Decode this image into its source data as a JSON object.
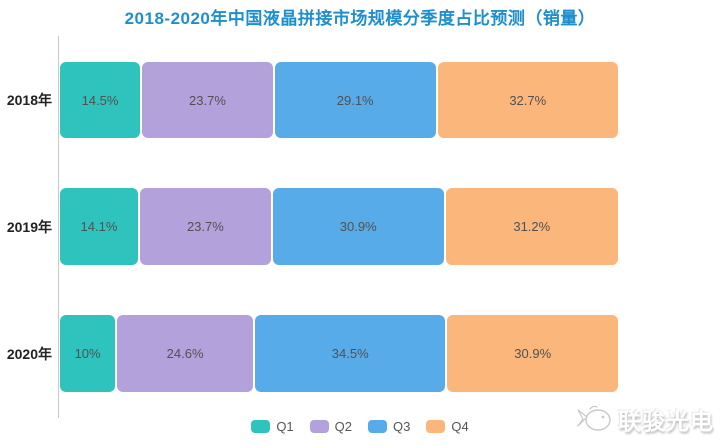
{
  "title": "2018-2020年中国液晶拼接市场规模分季度占比预测（销量）",
  "colors": {
    "title": "#1e8fcc",
    "axis": "#c9c9c9",
    "bar_label": "#515151",
    "category_label": "#222222",
    "legend_label": "#555555"
  },
  "chart_data": {
    "type": "bar",
    "orientation": "horizontal_stacked",
    "stack_unit": "%",
    "title": "2018-2020年中国液晶拼接市场规模分季度占比预测（销量）",
    "categories": [
      "2018年",
      "2019年",
      "2020年"
    ],
    "series": [
      {
        "name": "Q1",
        "color": "#2fc3bd",
        "values": [
          14.5,
          14.1,
          10
        ]
      },
      {
        "name": "Q2",
        "color": "#b3a1dc",
        "values": [
          23.7,
          23.7,
          24.6
        ]
      },
      {
        "name": "Q3",
        "color": "#58abe9",
        "values": [
          29.1,
          30.9,
          34.5
        ]
      },
      {
        "name": "Q4",
        "color": "#fbb67b",
        "values": [
          32.7,
          31.2,
          30.9
        ]
      }
    ],
    "data_labels": [
      [
        "14.5%",
        "23.7%",
        "29.1%",
        "32.7%"
      ],
      [
        "14.1%",
        "23.7%",
        "30.9%",
        "31.2%"
      ],
      [
        "10%",
        "24.6%",
        "34.5%",
        "30.9%"
      ]
    ],
    "xlim": [
      0,
      100
    ],
    "grid": false,
    "legend": {
      "position": "bottom",
      "labels": [
        "Q1",
        "Q2",
        "Q3",
        "Q4"
      ]
    }
  },
  "watermark": {
    "text": "联骏光电",
    "icon": "fish-logo"
  }
}
